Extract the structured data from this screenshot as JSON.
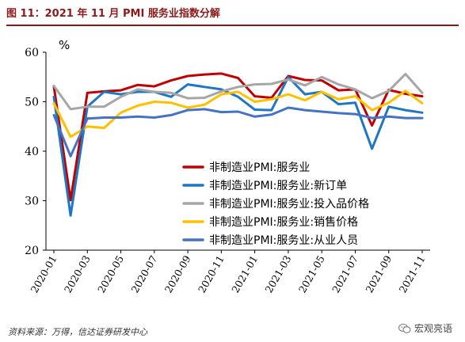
{
  "figure_title": "图 11：2021 年 11 月 PMI 服务业指数分解",
  "source": "资料来源：万得，信达证券研发中心",
  "watermark": "宏观亮语",
  "chart_data": {
    "type": "line",
    "unit_label": "%",
    "ylim": [
      20,
      60
    ],
    "yticks": [
      20,
      30,
      40,
      50,
      60
    ],
    "grid": false,
    "legend_position": "center",
    "x_tick_labels": [
      "2020-01",
      "2020-03",
      "2020-05",
      "2020-07",
      "2020-09",
      "2020-11",
      "2021-01",
      "2021-03",
      "2021-05",
      "2021-07",
      "2021-09",
      "2021-11"
    ],
    "x": [
      "2020-01",
      "2020-02",
      "2020-03",
      "2020-04",
      "2020-05",
      "2020-06",
      "2020-07",
      "2020-08",
      "2020-09",
      "2020-10",
      "2020-11",
      "2020-12",
      "2021-01",
      "2021-02",
      "2021-03",
      "2021-04",
      "2021-05",
      "2021-06",
      "2021-07",
      "2021-08",
      "2021-09",
      "2021-10",
      "2021-11"
    ],
    "series": [
      {
        "name": "非制造业PMI:服务业",
        "color": "#c00000",
        "values": [
          53.1,
          30.1,
          51.8,
          52.1,
          52.3,
          53.4,
          53.1,
          54.3,
          55.2,
          55.5,
          55.7,
          54.8,
          51.1,
          50.8,
          55.2,
          54.4,
          54.3,
          52.3,
          52.5,
          45.2,
          52.4,
          51.6,
          51.1
        ]
      },
      {
        "name": "非制造业PMI:服务业:新订单",
        "color": "#1f77c4",
        "values": [
          51.0,
          27.0,
          49.0,
          52.0,
          51.5,
          52.0,
          52.0,
          51.0,
          53.5,
          53.0,
          52.5,
          51.0,
          48.4,
          48.3,
          55.0,
          51.5,
          52.0,
          49.5,
          49.8,
          40.5,
          49.0,
          48.3,
          47.8
        ]
      },
      {
        "name": "非制造业PMI:服务业:投入品价格",
        "color": "#a6a6a6",
        "values": [
          53.2,
          48.5,
          49.0,
          49.0,
          51.0,
          52.5,
          52.0,
          51.8,
          50.7,
          50.8,
          52.1,
          53.0,
          53.5,
          53.6,
          54.5,
          53.3,
          55.0,
          53.5,
          52.5,
          50.7,
          52.2,
          55.6,
          51.8
        ]
      },
      {
        "name": "非制造业PMI:服务业:销售价格",
        "color": "#ffc000",
        "values": [
          49.7,
          42.9,
          45.0,
          44.7,
          47.8,
          49.2,
          50.0,
          49.8,
          48.8,
          49.4,
          51.5,
          52.0,
          50.0,
          50.5,
          51.5,
          50.3,
          52.0,
          50.5,
          51.1,
          48.3,
          49.8,
          52.2,
          49.7
        ]
      },
      {
        "name": "非制造业PMI:服务业:从业人员",
        "color": "#4472c4",
        "values": [
          47.3,
          39.0,
          46.6,
          46.8,
          46.8,
          47.0,
          46.8,
          47.3,
          48.3,
          48.5,
          47.9,
          48.0,
          47.0,
          47.4,
          48.8,
          48.3,
          48.0,
          47.7,
          47.5,
          46.7,
          47.0,
          46.7,
          46.7
        ]
      }
    ]
  }
}
